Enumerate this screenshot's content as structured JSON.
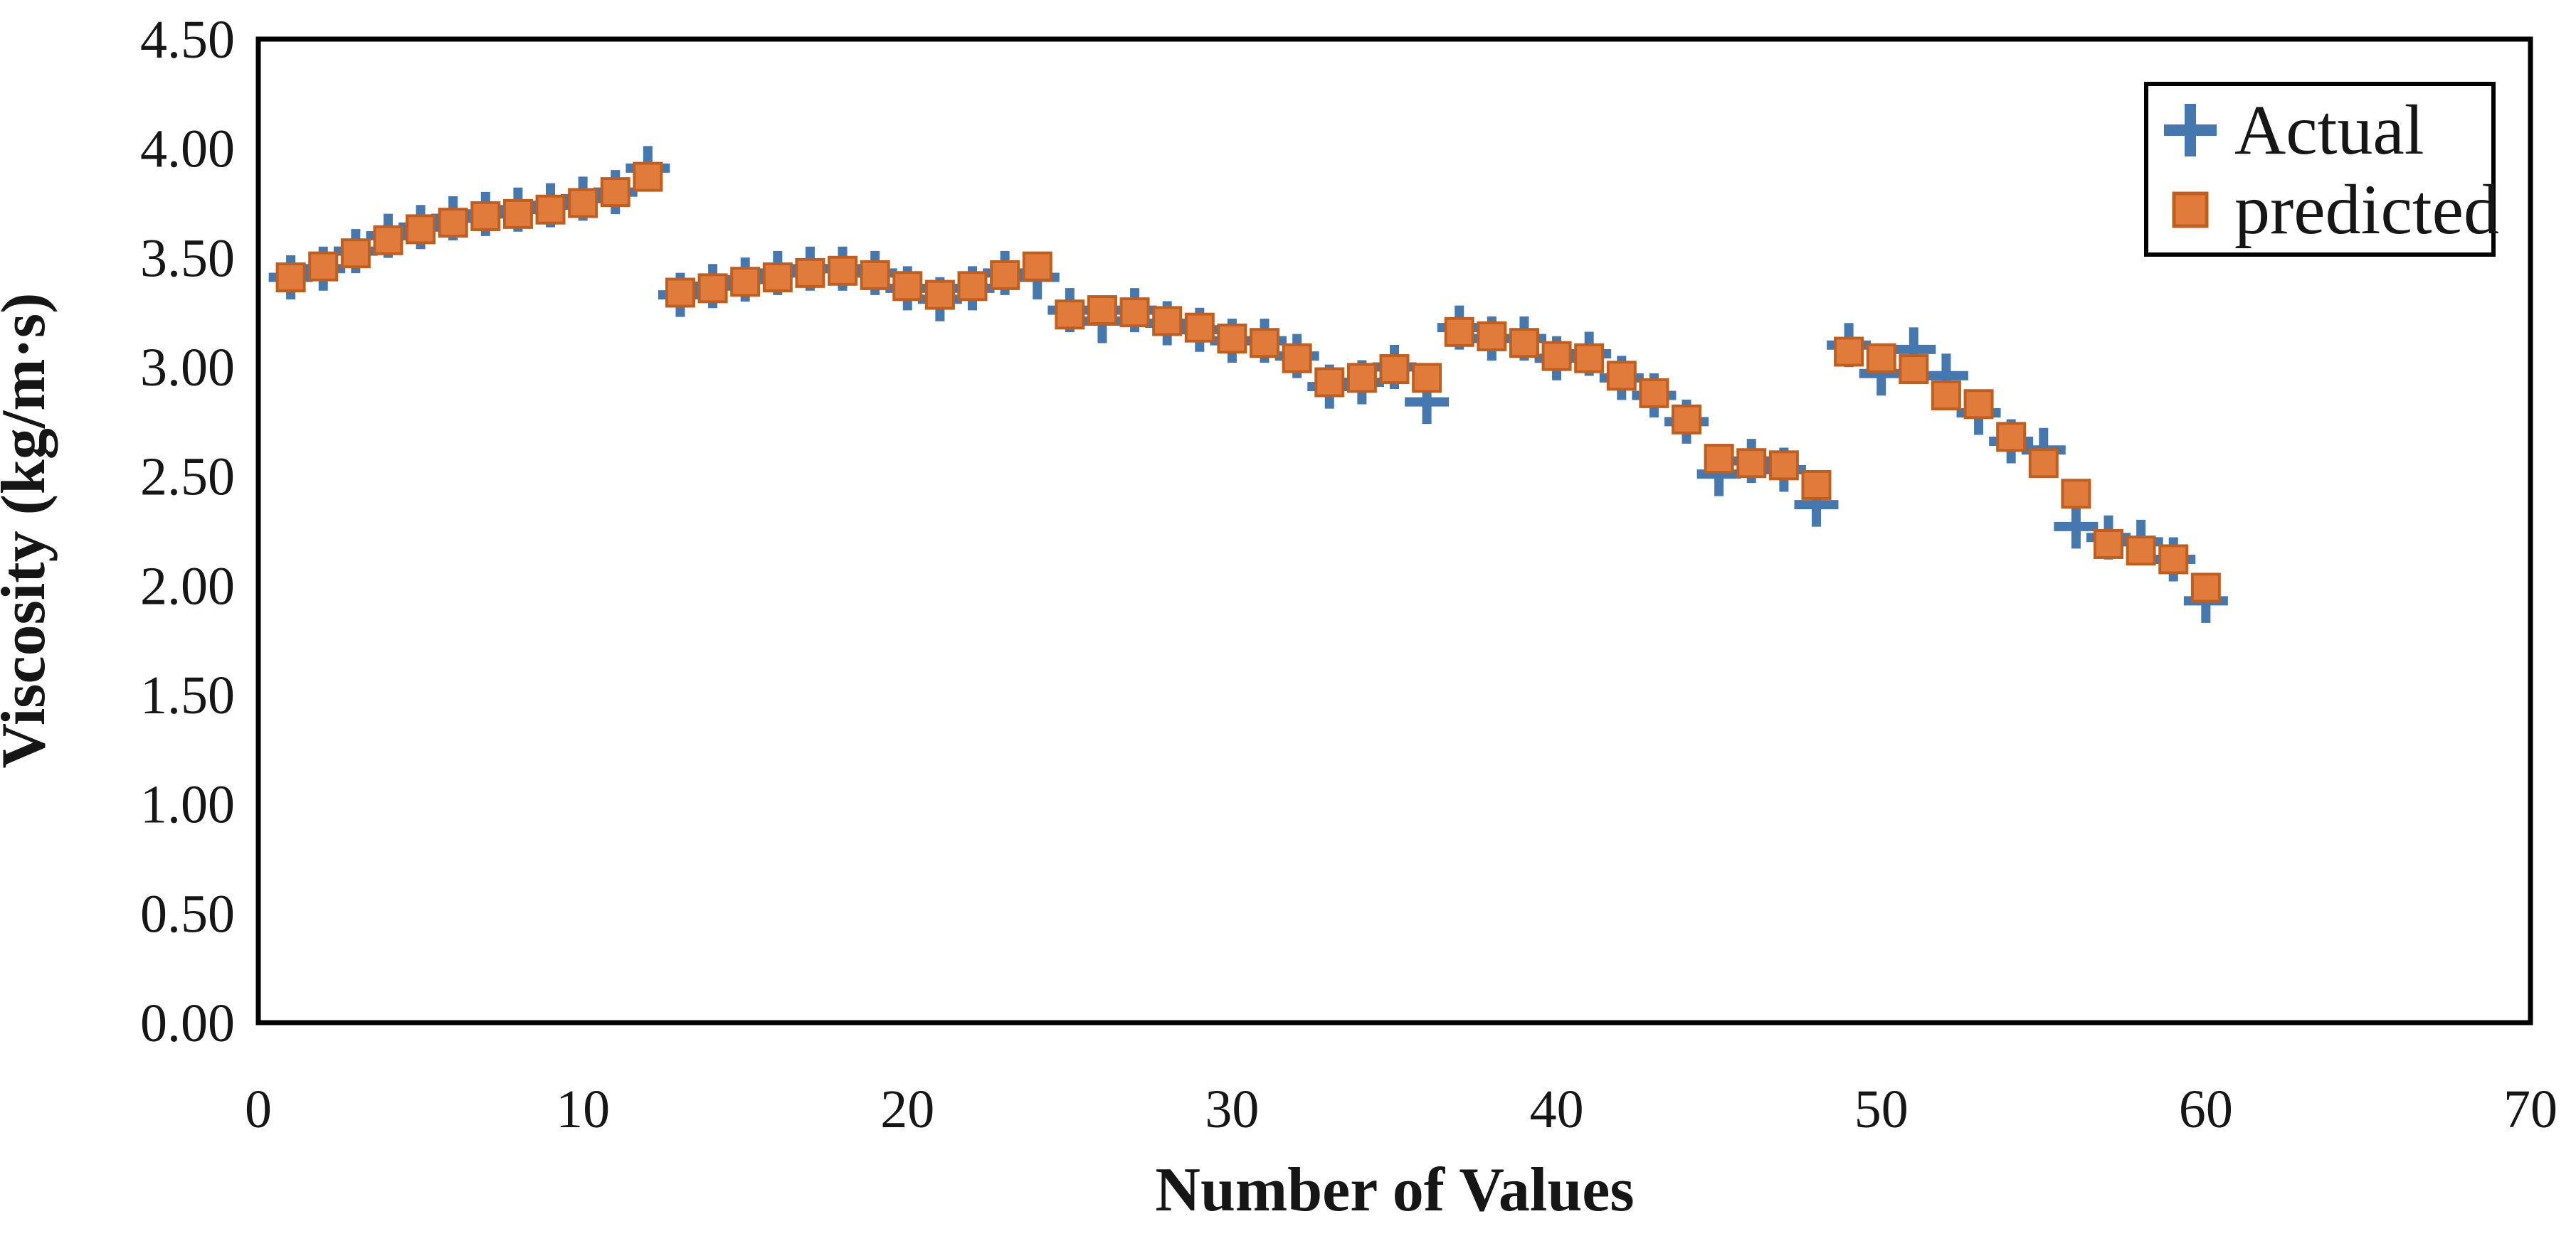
{
  "figure": {
    "background": "#ffffff",
    "frame_color": "#000000",
    "text_color": "#161616"
  },
  "chart_data": {
    "type": "scatter",
    "title": "",
    "xlabel": "Number of Values",
    "ylabel": "Viscosity (kg/m·s)",
    "xlim": [
      0,
      70
    ],
    "ylim": [
      0.0,
      4.5
    ],
    "x_ticks": [
      0,
      10,
      20,
      30,
      40,
      50,
      60,
      70
    ],
    "y_ticks": [
      "0.00",
      "0.50",
      "1.00",
      "1.50",
      "2.00",
      "2.50",
      "3.00",
      "3.50",
      "4.00",
      "4.50"
    ],
    "grid": false,
    "legend_position": "top-right",
    "x": [
      1,
      2,
      3,
      4,
      5,
      6,
      7,
      8,
      9,
      10,
      11,
      12,
      13,
      14,
      15,
      16,
      17,
      18,
      19,
      20,
      21,
      22,
      23,
      24,
      25,
      26,
      27,
      28,
      29,
      30,
      31,
      32,
      33,
      34,
      35,
      36,
      37,
      38,
      39,
      40,
      41,
      42,
      43,
      44,
      45,
      46,
      47,
      48,
      49,
      50,
      51,
      52,
      53,
      54,
      55,
      56,
      57,
      58,
      59,
      60
    ],
    "series": [
      {
        "name": "Actual",
        "marker": "plus",
        "color": "#4478AE",
        "values": [
          3.41,
          3.45,
          3.53,
          3.6,
          3.64,
          3.68,
          3.7,
          3.72,
          3.74,
          3.77,
          3.8,
          3.91,
          3.33,
          3.37,
          3.4,
          3.43,
          3.45,
          3.45,
          3.43,
          3.36,
          3.31,
          3.36,
          3.43,
          3.41,
          3.26,
          3.21,
          3.26,
          3.2,
          3.17,
          3.12,
          3.12,
          3.05,
          2.91,
          2.93,
          3.0,
          2.84,
          3.18,
          3.13,
          3.13,
          3.04,
          3.06,
          2.95,
          2.87,
          2.75,
          2.51,
          2.57,
          2.53,
          2.37,
          3.1,
          2.97,
          3.08,
          2.96,
          2.79,
          2.66,
          2.62,
          2.27,
          2.22,
          2.2,
          2.12,
          1.93
        ]
      },
      {
        "name": "predicted",
        "marker": "square",
        "color": "#E07B3C",
        "border_color": "#C05E1E",
        "values": [
          3.41,
          3.46,
          3.52,
          3.58,
          3.63,
          3.66,
          3.69,
          3.7,
          3.72,
          3.75,
          3.8,
          3.87,
          3.34,
          3.36,
          3.39,
          3.41,
          3.43,
          3.44,
          3.42,
          3.37,
          3.33,
          3.37,
          3.42,
          3.46,
          3.24,
          3.26,
          3.25,
          3.21,
          3.18,
          3.13,
          3.11,
          3.04,
          2.93,
          2.95,
          2.99,
          2.95,
          3.16,
          3.14,
          3.11,
          3.05,
          3.04,
          2.96,
          2.88,
          2.76,
          2.58,
          2.56,
          2.55,
          2.46,
          3.07,
          3.04,
          2.99,
          2.87,
          2.83,
          2.68,
          2.56,
          2.42,
          2.19,
          2.16,
          2.12,
          1.99
        ]
      }
    ]
  }
}
